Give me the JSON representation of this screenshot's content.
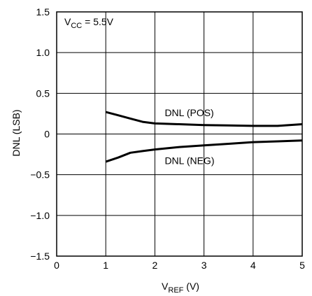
{
  "chart_data": {
    "type": "line",
    "annotation": {
      "base": "V",
      "sub": "CC",
      "rest": " = 5.5V"
    },
    "xlabel": {
      "base": "V",
      "sub": "REF",
      "rest": " (V)"
    },
    "ylabel": "DNL (LSB)",
    "xlim": [
      0,
      5
    ],
    "ylim": [
      -1.5,
      1.5
    ],
    "x_ticks": [
      0,
      1,
      2,
      3,
      4,
      5
    ],
    "x_tick_labels": [
      "0",
      "1",
      "2",
      "3",
      "4",
      "5"
    ],
    "y_ticks": [
      1.5,
      1.0,
      0.5,
      0,
      -0.5,
      -1.0,
      -1.5
    ],
    "y_tick_labels": [
      "1.5",
      "1.0",
      "0.5",
      "0",
      "−0.5",
      "−1.0",
      "−1.5"
    ],
    "grid": true,
    "series": [
      {
        "name": "DNL (POS)",
        "x": [
          1.0,
          1.25,
          1.5,
          1.75,
          2.0,
          2.5,
          3.0,
          3.5,
          4.0,
          4.5,
          5.0
        ],
        "y": [
          0.27,
          0.23,
          0.19,
          0.15,
          0.13,
          0.12,
          0.11,
          0.105,
          0.1,
          0.1,
          0.12
        ]
      },
      {
        "name": "DNL (NEG)",
        "x": [
          1.0,
          1.25,
          1.5,
          1.75,
          2.0,
          2.5,
          3.0,
          3.5,
          4.0,
          4.5,
          5.0
        ],
        "y": [
          -0.34,
          -0.29,
          -0.23,
          -0.21,
          -0.19,
          -0.16,
          -0.14,
          -0.12,
          -0.1,
          -0.09,
          -0.08
        ]
      }
    ]
  }
}
